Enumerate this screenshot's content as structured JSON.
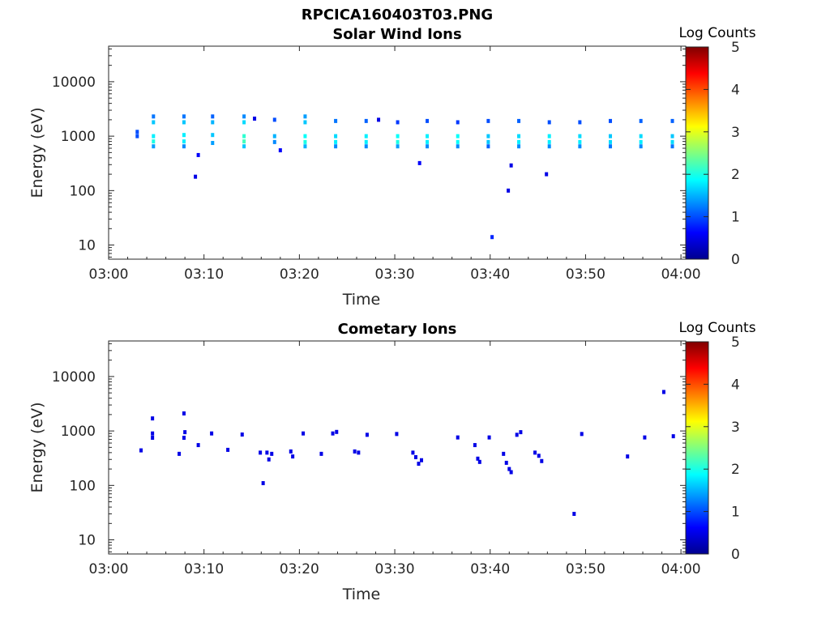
{
  "figure_title": "RPCICA160403T03.PNG",
  "colorbar": {
    "label": "Log Counts",
    "ticks": [
      "0",
      "1",
      "2",
      "3",
      "4",
      "5"
    ],
    "min": 0,
    "max": 5,
    "colormap": "jet"
  },
  "chart_data": [
    {
      "type": "heatmap",
      "title": "Solar Wind Ions",
      "xlabel": "Time",
      "ylabel": "Energy (eV)",
      "x_ticks": [
        "03:00",
        "03:10",
        "03:20",
        "03:30",
        "03:40",
        "03:50",
        "04:00"
      ],
      "xlim_min": [
        0,
        60.5
      ],
      "y_ticks": [
        "10",
        "100",
        "1000",
        "10000"
      ],
      "ylim": [
        5.5,
        45000
      ],
      "yscale": "log",
      "cells": [
        [
          3.0,
          1200,
          1
        ],
        [
          3.0,
          1000,
          1
        ],
        [
          4.7,
          2300,
          1.2
        ],
        [
          4.7,
          1800,
          1.6
        ],
        [
          4.7,
          1000,
          1.8
        ],
        [
          4.7,
          800,
          2.0
        ],
        [
          4.7,
          650,
          1.4
        ],
        [
          7.9,
          2300,
          1.2
        ],
        [
          7.9,
          1800,
          1.6
        ],
        [
          7.9,
          1050,
          1.8
        ],
        [
          7.9,
          800,
          1.8
        ],
        [
          7.9,
          650,
          1.3
        ],
        [
          9.4,
          450,
          0.6
        ],
        [
          9.1,
          180,
          0.5
        ],
        [
          10.9,
          2300,
          1.1
        ],
        [
          10.9,
          1800,
          1.5
        ],
        [
          10.9,
          1050,
          1.6
        ],
        [
          10.9,
          750,
          1.4
        ],
        [
          14.2,
          2300,
          1.3
        ],
        [
          14.2,
          1800,
          1.7
        ],
        [
          14.2,
          1000,
          2.1
        ],
        [
          14.2,
          800,
          2.2
        ],
        [
          14.2,
          650,
          1.6
        ],
        [
          15.3,
          2100,
          0.5
        ],
        [
          17.4,
          2000,
          1.0
        ],
        [
          17.4,
          1000,
          1.5
        ],
        [
          17.4,
          780,
          1.3
        ],
        [
          18.0,
          550,
          0.6
        ],
        [
          20.6,
          2300,
          1.4
        ],
        [
          20.6,
          1800,
          1.6
        ],
        [
          20.6,
          1000,
          1.9
        ],
        [
          20.6,
          780,
          2.0
        ],
        [
          20.6,
          650,
          1.5
        ],
        [
          23.8,
          1900,
          1.2
        ],
        [
          23.8,
          1000,
          1.7
        ],
        [
          23.8,
          780,
          1.8
        ],
        [
          23.8,
          650,
          1.3
        ],
        [
          27.0,
          1900,
          1.1
        ],
        [
          27.0,
          1000,
          1.8
        ],
        [
          27.0,
          780,
          1.8
        ],
        [
          27.0,
          650,
          1.3
        ],
        [
          28.3,
          2000,
          0.5
        ],
        [
          30.3,
          1800,
          0.9
        ],
        [
          30.3,
          1000,
          1.9
        ],
        [
          30.3,
          780,
          2.0
        ],
        [
          30.3,
          650,
          1.4
        ],
        [
          33.4,
          1900,
          1.0
        ],
        [
          33.4,
          1000,
          1.8
        ],
        [
          33.4,
          780,
          1.8
        ],
        [
          33.4,
          650,
          1.3
        ],
        [
          32.6,
          320,
          0.6
        ],
        [
          36.6,
          1800,
          0.9
        ],
        [
          36.6,
          1000,
          1.9
        ],
        [
          36.6,
          780,
          1.9
        ],
        [
          36.6,
          650,
          1.3
        ],
        [
          39.8,
          1900,
          1.0
        ],
        [
          39.8,
          1000,
          1.6
        ],
        [
          39.8,
          780,
          1.6
        ],
        [
          39.8,
          650,
          1.1
        ],
        [
          40.2,
          14,
          0.8
        ],
        [
          41.9,
          100,
          0.5
        ],
        [
          42.2,
          290,
          0.5
        ],
        [
          43.0,
          1900,
          1.1
        ],
        [
          43.0,
          1000,
          1.7
        ],
        [
          43.0,
          780,
          1.8
        ],
        [
          43.0,
          650,
          1.3
        ],
        [
          46.2,
          1800,
          1.0
        ],
        [
          46.2,
          1000,
          1.8
        ],
        [
          46.2,
          780,
          1.8
        ],
        [
          46.2,
          650,
          1.3
        ],
        [
          45.9,
          200,
          0.5
        ],
        [
          49.4,
          1800,
          1.0
        ],
        [
          49.4,
          1000,
          1.7
        ],
        [
          49.4,
          780,
          1.8
        ],
        [
          49.4,
          650,
          1.3
        ],
        [
          52.6,
          1900,
          1.0
        ],
        [
          52.6,
          1000,
          1.6
        ],
        [
          52.6,
          780,
          1.7
        ],
        [
          52.6,
          650,
          1.2
        ],
        [
          55.8,
          1900,
          1.1
        ],
        [
          55.8,
          1000,
          1.7
        ],
        [
          55.8,
          780,
          1.8
        ],
        [
          55.8,
          650,
          1.3
        ],
        [
          59.1,
          1900,
          1.1
        ],
        [
          59.1,
          1000,
          1.6
        ],
        [
          59.1,
          780,
          1.7
        ],
        [
          59.1,
          650,
          1.2
        ]
      ]
    },
    {
      "type": "heatmap",
      "title": "Cometary Ions",
      "xlabel": "Time",
      "ylabel": "Energy (eV)",
      "x_ticks": [
        "03:00",
        "03:10",
        "03:20",
        "03:30",
        "03:40",
        "03:50",
        "04:00"
      ],
      "xlim_min": [
        0,
        60.5
      ],
      "y_ticks": [
        "10",
        "100",
        "1000",
        "10000"
      ],
      "ylim": [
        5.5,
        45000
      ],
      "yscale": "log",
      "cells": [
        [
          3.4,
          440,
          0.5
        ],
        [
          4.6,
          1700,
          0.5
        ],
        [
          4.6,
          900,
          0.5
        ],
        [
          4.6,
          750,
          0.5
        ],
        [
          7.4,
          380,
          0.5
        ],
        [
          7.9,
          2100,
          0.5
        ],
        [
          8.0,
          950,
          0.5
        ],
        [
          7.9,
          750,
          0.5
        ],
        [
          9.4,
          550,
          0.5
        ],
        [
          10.8,
          900,
          0.5
        ],
        [
          12.5,
          450,
          0.5
        ],
        [
          14.0,
          860,
          0.5
        ],
        [
          15.9,
          400,
          0.5
        ],
        [
          16.2,
          110,
          0.5
        ],
        [
          16.6,
          400,
          0.5
        ],
        [
          16.8,
          300,
          0.5
        ],
        [
          17.1,
          380,
          0.5
        ],
        [
          19.1,
          420,
          0.5
        ],
        [
          19.3,
          340,
          0.5
        ],
        [
          20.4,
          900,
          0.5
        ],
        [
          22.3,
          380,
          0.5
        ],
        [
          23.5,
          900,
          0.5
        ],
        [
          23.9,
          960,
          0.5
        ],
        [
          25.8,
          420,
          0.5
        ],
        [
          26.2,
          400,
          0.5
        ],
        [
          27.1,
          850,
          0.5
        ],
        [
          30.2,
          880,
          0.5
        ],
        [
          31.9,
          400,
          0.5
        ],
        [
          32.2,
          330,
          0.5
        ],
        [
          32.5,
          250,
          0.5
        ],
        [
          32.8,
          290,
          0.5
        ],
        [
          36.6,
          760,
          0.5
        ],
        [
          38.4,
          550,
          0.5
        ],
        [
          38.7,
          310,
          0.5
        ],
        [
          38.9,
          270,
          0.5
        ],
        [
          39.9,
          760,
          0.5
        ],
        [
          41.4,
          380,
          0.5
        ],
        [
          41.7,
          260,
          0.5
        ],
        [
          42.0,
          200,
          0.5
        ],
        [
          42.2,
          175,
          0.5
        ],
        [
          42.8,
          850,
          0.5
        ],
        [
          43.2,
          950,
          0.5
        ],
        [
          44.7,
          400,
          0.5
        ],
        [
          45.1,
          350,
          0.5
        ],
        [
          45.4,
          280,
          0.5
        ],
        [
          48.8,
          30,
          0.5
        ],
        [
          49.6,
          880,
          0.5
        ],
        [
          54.4,
          340,
          0.5
        ],
        [
          56.2,
          760,
          0.5
        ],
        [
          58.2,
          5200,
          0.5
        ],
        [
          59.2,
          800,
          0.5
        ]
      ]
    }
  ]
}
